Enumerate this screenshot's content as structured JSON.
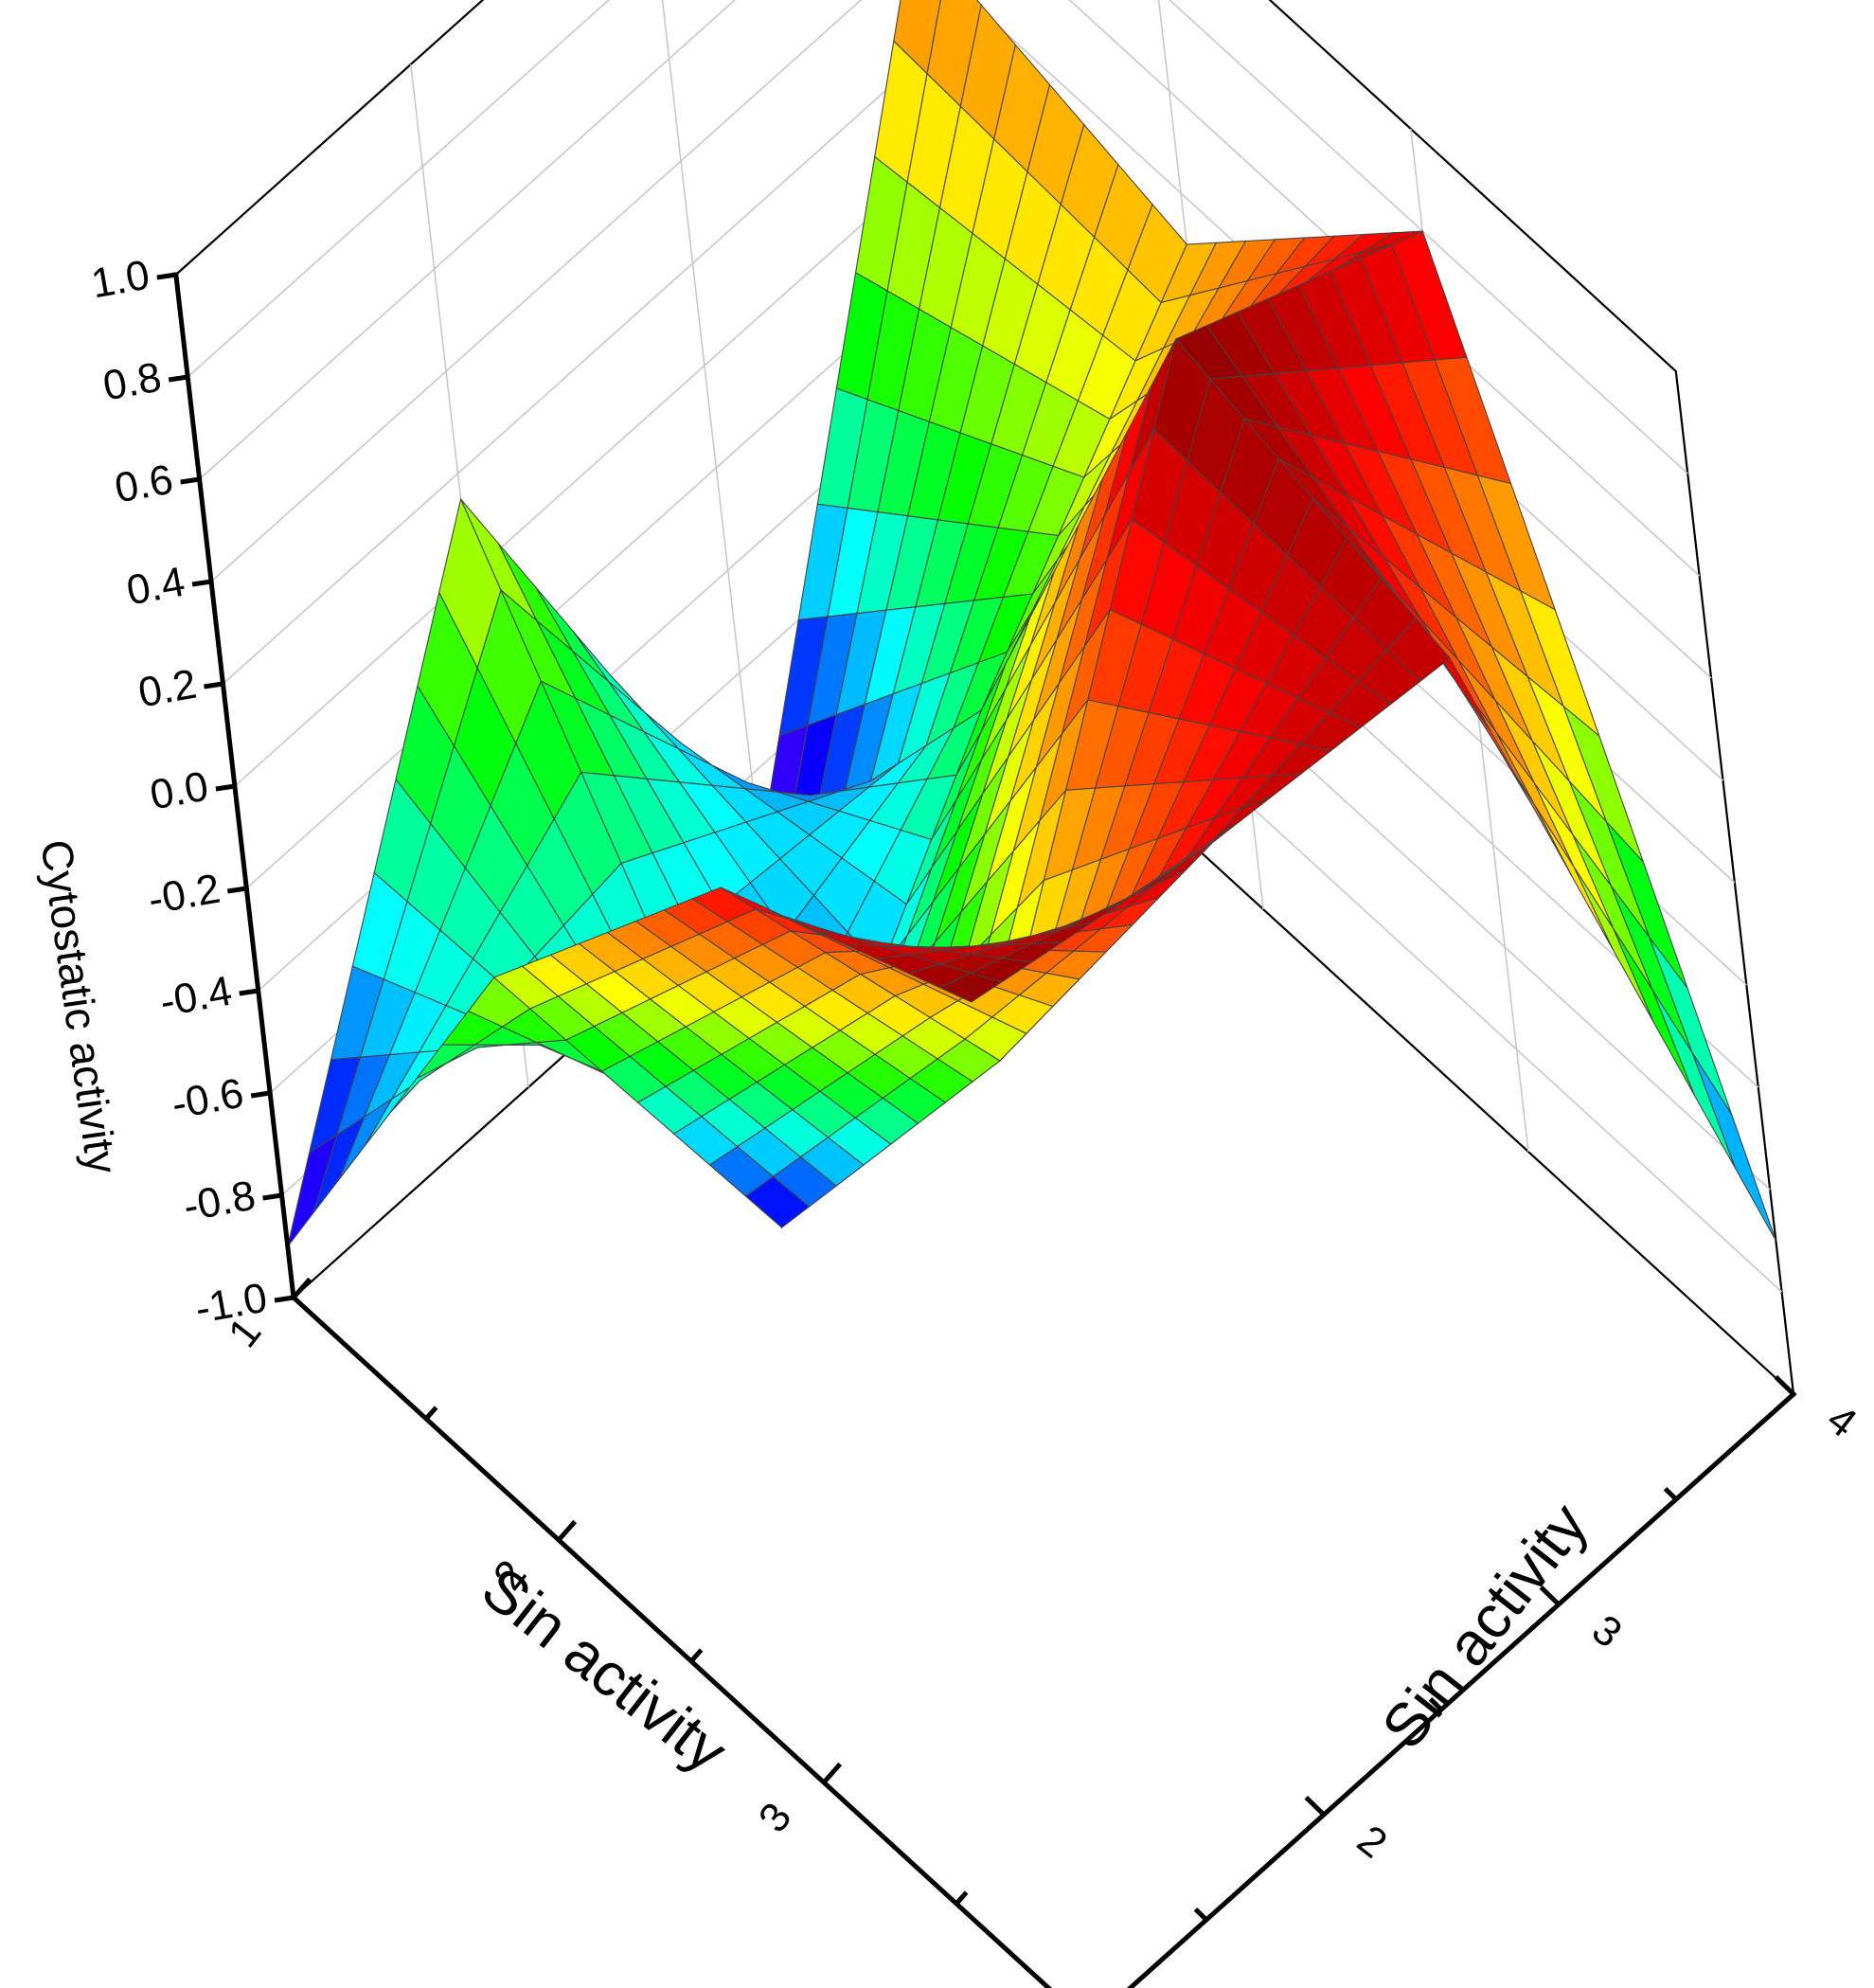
{
  "chart_data": {
    "type": "surface3d",
    "x_axis": {
      "label": "Sin activity",
      "ticks": [
        "1",
        "2",
        "3",
        "4"
      ],
      "range": [
        1,
        4
      ]
    },
    "y_axis": {
      "label": "Sin activity",
      "ticks": [
        "1",
        "2",
        "3",
        "4"
      ],
      "range": [
        1,
        4
      ]
    },
    "z_axis": {
      "label": "Cytostatic activity",
      "ticks": [
        "-1.0",
        "-0.8",
        "-0.6",
        "-0.4",
        "-0.2",
        "0.0",
        "0.2",
        "0.4",
        "0.6",
        "0.8",
        "1.0"
      ],
      "range": [
        -1.0,
        1.0
      ]
    },
    "x": [
      1,
      2,
      3,
      4
    ],
    "y": [
      1,
      2,
      3,
      4
    ],
    "z": [
      [
        -0.9,
        0.15,
        -0.95,
        0.45
      ],
      [
        0.1,
        -0.8,
        -0.2,
        0.3
      ],
      [
        0.75,
        0.0,
        1.0,
        0.8
      ],
      [
        1.0,
        0.9,
        0.85,
        -0.7
      ]
    ],
    "colormap": [
      "#7f00ff",
      "#0000ff",
      "#00ffff",
      "#00ff00",
      "#ffff00",
      "#ff8000",
      "#ff0000",
      "#8b0000"
    ],
    "grid": true
  }
}
